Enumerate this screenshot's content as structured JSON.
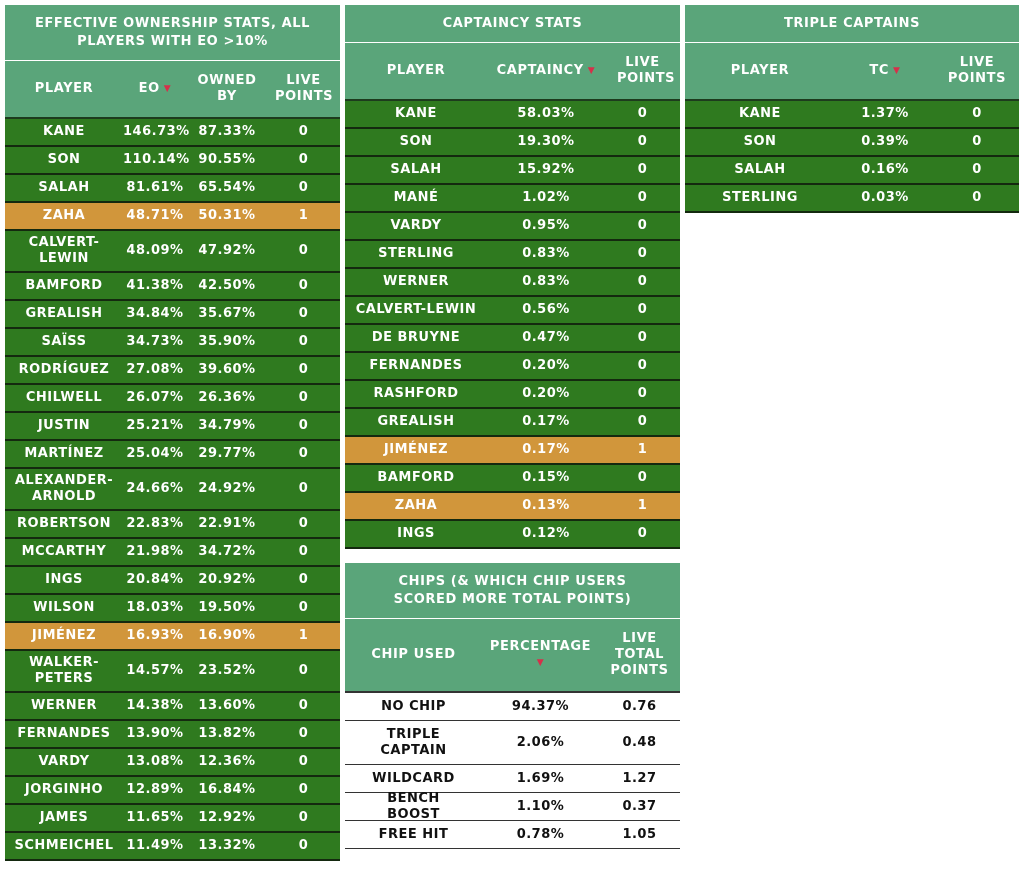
{
  "eo_panel": {
    "title": "EFFECTIVE OWNERSHIP STATS, ALL PLAYERS WITH EO >10%",
    "headers": [
      "PLAYER",
      "EO",
      "OWNED BY",
      "LIVE POINTS"
    ],
    "rows": [
      {
        "player": "KANE",
        "eo": "146.73%",
        "owned": "87.33%",
        "live": "0",
        "highlight": false
      },
      {
        "player": "SON",
        "eo": "110.14%",
        "owned": "90.55%",
        "live": "0",
        "highlight": false
      },
      {
        "player": "SALAH",
        "eo": "81.61%",
        "owned": "65.54%",
        "live": "0",
        "highlight": false
      },
      {
        "player": "ZAHA",
        "eo": "48.71%",
        "owned": "50.31%",
        "live": "1",
        "highlight": true
      },
      {
        "player": "CALVERT-LEWIN",
        "eo": "48.09%",
        "owned": "47.92%",
        "live": "0",
        "highlight": false
      },
      {
        "player": "BAMFORD",
        "eo": "41.38%",
        "owned": "42.50%",
        "live": "0",
        "highlight": false
      },
      {
        "player": "GREALISH",
        "eo": "34.84%",
        "owned": "35.67%",
        "live": "0",
        "highlight": false
      },
      {
        "player": "SAÏSS",
        "eo": "34.73%",
        "owned": "35.90%",
        "live": "0",
        "highlight": false
      },
      {
        "player": "RODRÍGUEZ",
        "eo": "27.08%",
        "owned": "39.60%",
        "live": "0",
        "highlight": false
      },
      {
        "player": "CHILWELL",
        "eo": "26.07%",
        "owned": "26.36%",
        "live": "0",
        "highlight": false
      },
      {
        "player": "JUSTIN",
        "eo": "25.21%",
        "owned": "34.79%",
        "live": "0",
        "highlight": false
      },
      {
        "player": "MARTÍNEZ",
        "eo": "25.04%",
        "owned": "29.77%",
        "live": "0",
        "highlight": false
      },
      {
        "player": "ALEXANDER-ARNOLD",
        "eo": "24.66%",
        "owned": "24.92%",
        "live": "0",
        "highlight": false
      },
      {
        "player": "ROBERTSON",
        "eo": "22.83%",
        "owned": "22.91%",
        "live": "0",
        "highlight": false
      },
      {
        "player": "MCCARTHY",
        "eo": "21.98%",
        "owned": "34.72%",
        "live": "0",
        "highlight": false
      },
      {
        "player": "INGS",
        "eo": "20.84%",
        "owned": "20.92%",
        "live": "0",
        "highlight": false
      },
      {
        "player": "WILSON",
        "eo": "18.03%",
        "owned": "19.50%",
        "live": "0",
        "highlight": false
      },
      {
        "player": "JIMÉNEZ",
        "eo": "16.93%",
        "owned": "16.90%",
        "live": "1",
        "highlight": true
      },
      {
        "player": "WALKER-PETERS",
        "eo": "14.57%",
        "owned": "23.52%",
        "live": "0",
        "highlight": false
      },
      {
        "player": "WERNER",
        "eo": "14.38%",
        "owned": "13.60%",
        "live": "0",
        "highlight": false
      },
      {
        "player": "FERNANDES",
        "eo": "13.90%",
        "owned": "13.82%",
        "live": "0",
        "highlight": false
      },
      {
        "player": "VARDY",
        "eo": "13.08%",
        "owned": "12.36%",
        "live": "0",
        "highlight": false
      },
      {
        "player": "JORGINHO",
        "eo": "12.89%",
        "owned": "16.84%",
        "live": "0",
        "highlight": false
      },
      {
        "player": "JAMES",
        "eo": "11.65%",
        "owned": "12.92%",
        "live": "0",
        "highlight": false
      },
      {
        "player": "SCHMEICHEL",
        "eo": "11.49%",
        "owned": "13.32%",
        "live": "0",
        "highlight": false
      }
    ]
  },
  "captaincy_panel": {
    "title": "CAPTAINCY STATS",
    "headers": [
      "PLAYER",
      "CAPTAINCY",
      "LIVE POINTS"
    ],
    "rows": [
      {
        "player": "KANE",
        "captaincy": "58.03%",
        "live": "0",
        "highlight": false
      },
      {
        "player": "SON",
        "captaincy": "19.30%",
        "live": "0",
        "highlight": false
      },
      {
        "player": "SALAH",
        "captaincy": "15.92%",
        "live": "0",
        "highlight": false
      },
      {
        "player": "MANÉ",
        "captaincy": "1.02%",
        "live": "0",
        "highlight": false
      },
      {
        "player": "VARDY",
        "captaincy": "0.95%",
        "live": "0",
        "highlight": false
      },
      {
        "player": "STERLING",
        "captaincy": "0.83%",
        "live": "0",
        "highlight": false
      },
      {
        "player": "WERNER",
        "captaincy": "0.83%",
        "live": "0",
        "highlight": false
      },
      {
        "player": "CALVERT-LEWIN",
        "captaincy": "0.56%",
        "live": "0",
        "highlight": false
      },
      {
        "player": "DE BRUYNE",
        "captaincy": "0.47%",
        "live": "0",
        "highlight": false
      },
      {
        "player": "FERNANDES",
        "captaincy": "0.20%",
        "live": "0",
        "highlight": false
      },
      {
        "player": "RASHFORD",
        "captaincy": "0.20%",
        "live": "0",
        "highlight": false
      },
      {
        "player": "GREALISH",
        "captaincy": "0.17%",
        "live": "0",
        "highlight": false
      },
      {
        "player": "JIMÉNEZ",
        "captaincy": "0.17%",
        "live": "1",
        "highlight": true
      },
      {
        "player": "BAMFORD",
        "captaincy": "0.15%",
        "live": "0",
        "highlight": false
      },
      {
        "player": "ZAHA",
        "captaincy": "0.13%",
        "live": "1",
        "highlight": true
      },
      {
        "player": "INGS",
        "captaincy": "0.12%",
        "live": "0",
        "highlight": false
      }
    ]
  },
  "triple_panel": {
    "title": "TRIPLE CAPTAINS",
    "headers": [
      "PLAYER",
      "TC",
      "LIVE POINTS"
    ],
    "rows": [
      {
        "player": "KANE",
        "tc": "1.37%",
        "live": "0"
      },
      {
        "player": "SON",
        "tc": "0.39%",
        "live": "0"
      },
      {
        "player": "SALAH",
        "tc": "0.16%",
        "live": "0"
      },
      {
        "player": "STERLING",
        "tc": "0.03%",
        "live": "0"
      }
    ]
  },
  "chips_panel": {
    "title": "CHIPS (& WHICH CHIP USERS SCORED MORE TOTAL POINTS)",
    "headers": [
      "CHIP USED",
      "PERCENTAGE",
      "LIVE TOTAL POINTS"
    ],
    "rows": [
      {
        "chip": "NO CHIP",
        "pct": "94.37%",
        "live": "0.76"
      },
      {
        "chip": "TRIPLE CAPTAIN",
        "pct": "2.06%",
        "live": "0.48"
      },
      {
        "chip": "WILDCARD",
        "pct": "1.69%",
        "live": "1.27"
      },
      {
        "chip": "BENCH BOOST",
        "pct": "1.10%",
        "live": "0.37"
      },
      {
        "chip": "FREE HIT",
        "pct": "0.78%",
        "live": "1.05"
      }
    ]
  },
  "colors": {
    "header_green": "#5aa57a",
    "row_green": "#2f7a1f",
    "highlight_orange": "#d1963b",
    "sort_arrow": "#d6304a"
  },
  "icons": {
    "sort": "sort-down-icon"
  }
}
